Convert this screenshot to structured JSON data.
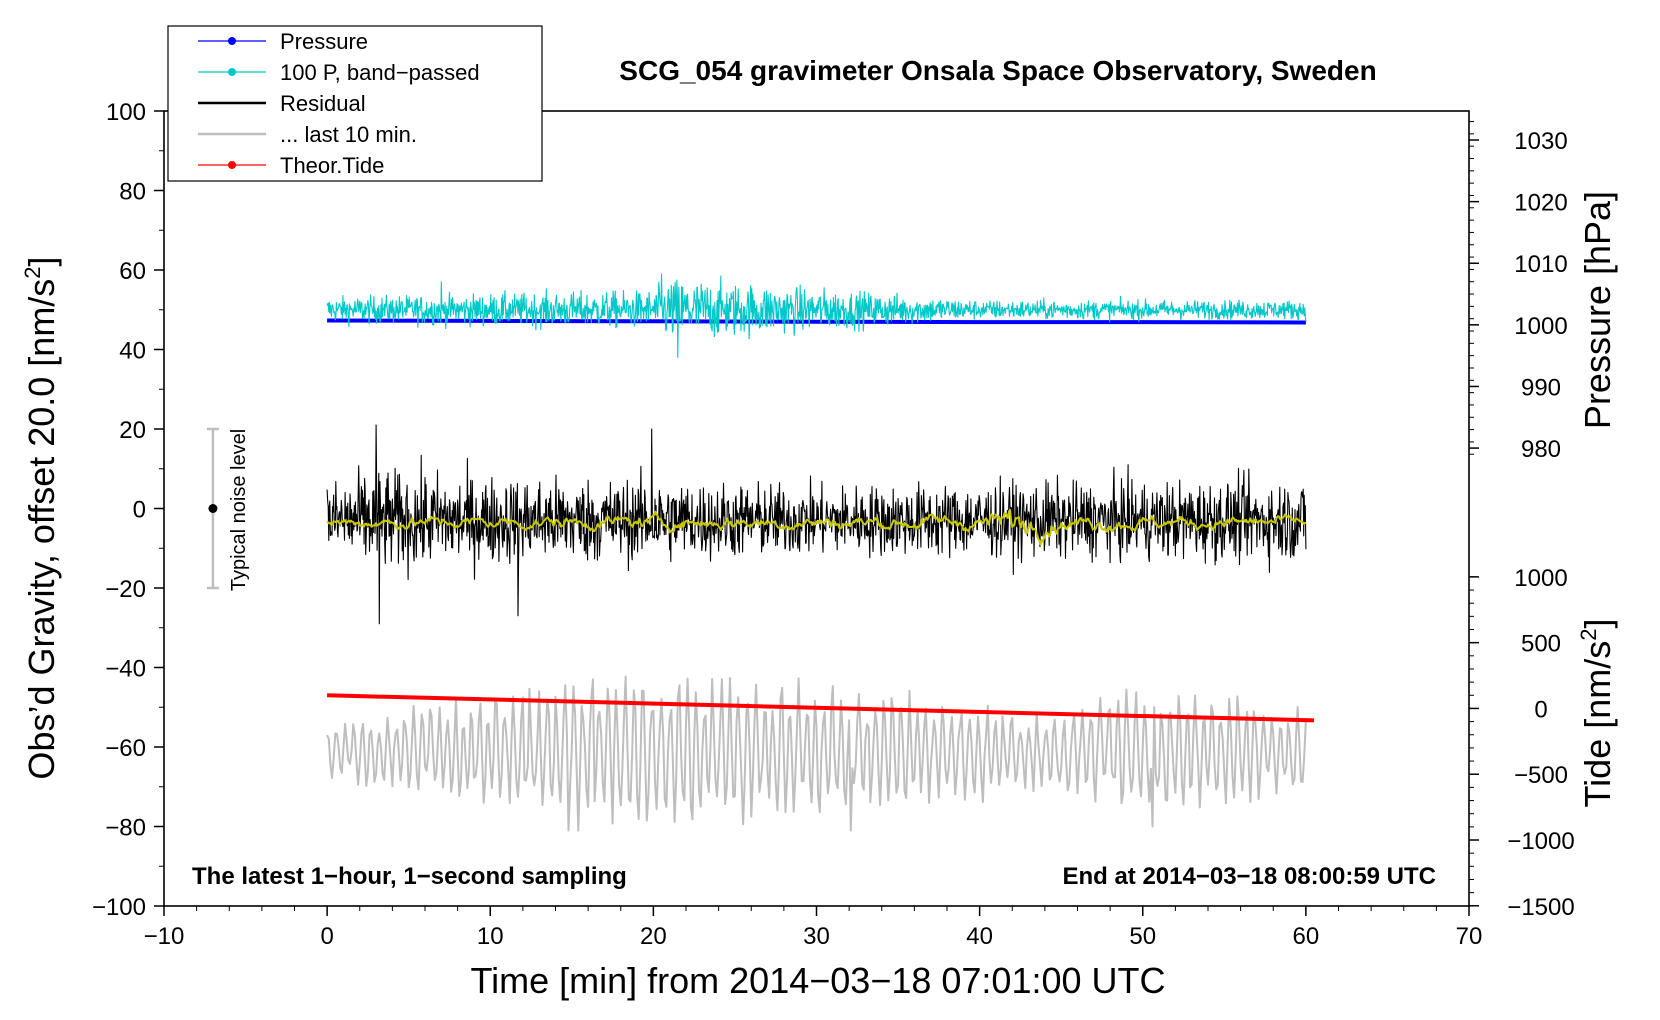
{
  "chart_data": {
    "type": "line",
    "title": "SCG_054 gravimeter Onsala Space Observatory, Sweden",
    "xlabel": "Time [min] from 2014−03−18 07:01:00 UTC",
    "ylabel_main": "Obs’d Gravity, offset 20.0 [nm/s",
    "ylabel_main_sup": "2",
    "ylabel_main_close": "]",
    "ylabel_pressure": "Pressure [hPa]",
    "ylabel_tide": "Tide [nm/s",
    "ylabel_tide_sup": "2",
    "ylabel_tide_close": "]",
    "xlim": [
      -10,
      70
    ],
    "ylim": [
      -100,
      100
    ],
    "x_ticks": [
      -10,
      0,
      10,
      20,
      30,
      40,
      50,
      60,
      70
    ],
    "x_tick_labels": [
      "−10",
      "0",
      "10",
      "20",
      "30",
      "40",
      "50",
      "60",
      "70"
    ],
    "y_ticks": [
      -100,
      -80,
      -60,
      -40,
      -20,
      0,
      20,
      40,
      60,
      80,
      100
    ],
    "y_tick_labels": [
      "−100",
      "−80",
      "−60",
      "−40",
      "−20",
      "0",
      "20",
      "40",
      "60",
      "80",
      "100"
    ],
    "pressure_axis": {
      "ticks": [
        980,
        990,
        1000,
        1010,
        1020,
        1030
      ],
      "labels": [
        "980",
        "990",
        "1000",
        "1010",
        "1020",
        "1030"
      ],
      "map_main_at_980": 15.2,
      "main_per_hpa": 1.55
    },
    "tide_axis": {
      "ticks": [
        -1500,
        -1000,
        -500,
        0,
        500,
        1000
      ],
      "labels": [
        "−1500",
        "−1000",
        "−500",
        "0",
        "500",
        "1000"
      ],
      "map_main_at_0": -50.3,
      "main_per_unit": 0.0331
    },
    "annotation_left": "The latest 1−hour, 1−second sampling",
    "annotation_right": "End at 2014−03−18 08:00:59 UTC",
    "noise_label": "Typical noise level",
    "noise_bar": {
      "x": -7,
      "center": 0,
      "half_range": 20
    },
    "legend": [
      {
        "label": "Pressure",
        "color": "#0000ff",
        "style": "line-dot"
      },
      {
        "label": "100 P, band−passed",
        "color": "#00c8c8",
        "style": "line-dot"
      },
      {
        "label": "Residual",
        "color": "#000000",
        "style": "line"
      },
      {
        "label": "... last 10 min.",
        "color": "#bebebe",
        "style": "line"
      },
      {
        "label": "Theor.Tide",
        "color": "#ff0000",
        "style": "line-dot"
      }
    ],
    "series": [
      {
        "name": "Pressure",
        "color": "#0000ff",
        "kind": "smooth",
        "x": [
          0,
          10,
          20,
          30,
          40,
          50,
          60
        ],
        "y": [
          47.3,
          47.2,
          47.1,
          47.0,
          46.9,
          46.9,
          46.8
        ]
      },
      {
        "name": "100 P, band−passed",
        "color": "#00c8c8",
        "kind": "noise",
        "x_range": [
          0,
          60
        ],
        "baseline": 50,
        "amp_at": [
          [
            0,
            4
          ],
          [
            20,
            6
          ],
          [
            21,
            10
          ],
          [
            40,
            3
          ],
          [
            60,
            3
          ]
        ],
        "extremes": [
          {
            "x": 20.5,
            "y": 59
          },
          {
            "x": 21.5,
            "y": 38
          },
          {
            "x": 7,
            "y": 57
          }
        ]
      },
      {
        "name": "Residual",
        "color": "#000000",
        "kind": "noise",
        "x_range": [
          0,
          60
        ],
        "baseline": -3,
        "amp_at": [
          [
            0,
            12
          ],
          [
            3,
            16
          ],
          [
            10,
            14
          ],
          [
            20,
            13
          ],
          [
            30,
            11
          ],
          [
            45,
            12
          ],
          [
            60,
            13
          ]
        ],
        "extremes": [
          {
            "x": 3,
            "y": 21
          },
          {
            "x": 3.2,
            "y": -29
          },
          {
            "x": 19.9,
            "y": 20
          },
          {
            "x": 11.7,
            "y": -27
          }
        ]
      },
      {
        "name": "Residual 1-min mean",
        "color": "#c8c800",
        "kind": "noise",
        "x_range": [
          0,
          60
        ],
        "baseline": -3.5,
        "amp_at": [
          [
            0,
            1.2
          ],
          [
            40,
            1.5
          ],
          [
            42,
            3
          ],
          [
            45,
            1.5
          ],
          [
            60,
            1.2
          ]
        ]
      },
      {
        "name": "... last 10 min.",
        "color": "#bebebe",
        "kind": "osc",
        "x_range": [
          0,
          60
        ],
        "baseline": -61,
        "amp_at": [
          [
            0,
            6
          ],
          [
            10,
            14
          ],
          [
            15,
            18
          ],
          [
            30,
            16
          ],
          [
            45,
            9
          ],
          [
            50,
            17
          ],
          [
            60,
            10
          ]
        ],
        "extremes": [
          {
            "x": 14.8,
            "y": -81
          },
          {
            "x": 32.1,
            "y": -81
          },
          {
            "x": 50.6,
            "y": -80
          },
          {
            "x": 16.3,
            "y": -43
          }
        ]
      },
      {
        "name": "Theor.Tide",
        "color": "#ff0000",
        "kind": "linear",
        "x": [
          0,
          60.5
        ],
        "y": [
          -47,
          -53.3
        ]
      }
    ]
  },
  "colors": {
    "background": "#ffffff",
    "axis": "#000000",
    "noise_bar": "#bebebe"
  }
}
